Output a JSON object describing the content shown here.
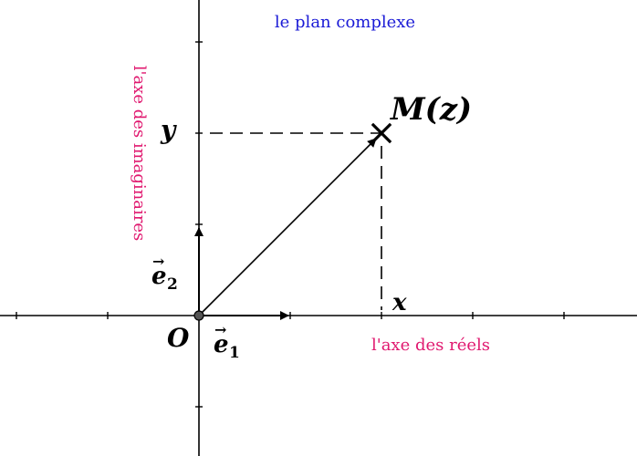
{
  "title": "le plan complexe",
  "axes": {
    "real_label": "l'axe des réels",
    "imaginary_label": "l'axe des imaginaires"
  },
  "labels": {
    "origin": "O",
    "point": "M(z)",
    "x": "x",
    "y": "y",
    "e1_letter": "e",
    "e1_index": "1",
    "e2_letter": "e",
    "e2_index": "2",
    "vector_arrow": "→"
  },
  "colors": {
    "title": "#1a1ad6",
    "axis_labels": "#e0186f",
    "ink": "#000000",
    "origin_dot": "#555555"
  }
}
